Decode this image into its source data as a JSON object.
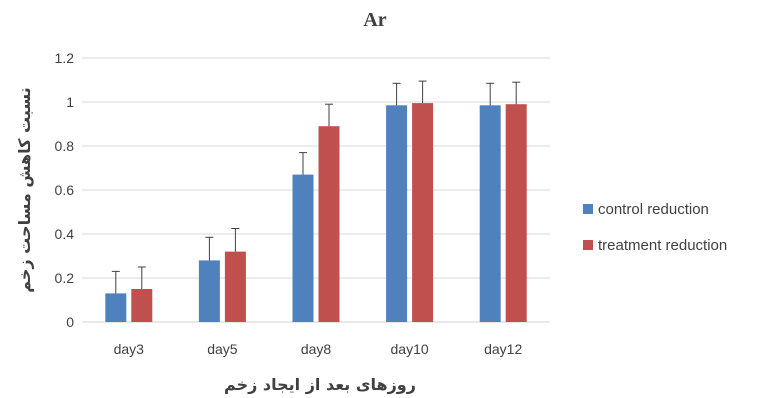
{
  "chart_data": {
    "type": "bar",
    "title": "Ar",
    "xlabel": "روزهای بعد از ایجاد زخم",
    "ylabel": "نسبت کاهش مساحت زخم",
    "categories": [
      "day3",
      "day5",
      "day8",
      "day10",
      "day12"
    ],
    "ylim": [
      0,
      1.2
    ],
    "yticks": [
      0,
      0.2,
      0.4,
      0.6,
      0.8,
      1,
      1.2
    ],
    "ytick_labels": [
      "0",
      "0.2",
      "0.4",
      "0.6",
      "0.8",
      "1",
      "1.2"
    ],
    "grid": true,
    "legend_position": "right",
    "series": [
      {
        "name": "control reduction",
        "color": "#4F81BD",
        "values": [
          0.13,
          0.28,
          0.67,
          0.985,
          0.985
        ],
        "error": [
          0.1,
          0.105,
          0.1,
          0.1,
          0.1
        ]
      },
      {
        "name": "treatment reduction",
        "color": "#C0504D",
        "values": [
          0.15,
          0.32,
          0.89,
          0.995,
          0.99
        ],
        "error": [
          0.1,
          0.105,
          0.1,
          0.1,
          0.1
        ]
      }
    ]
  }
}
